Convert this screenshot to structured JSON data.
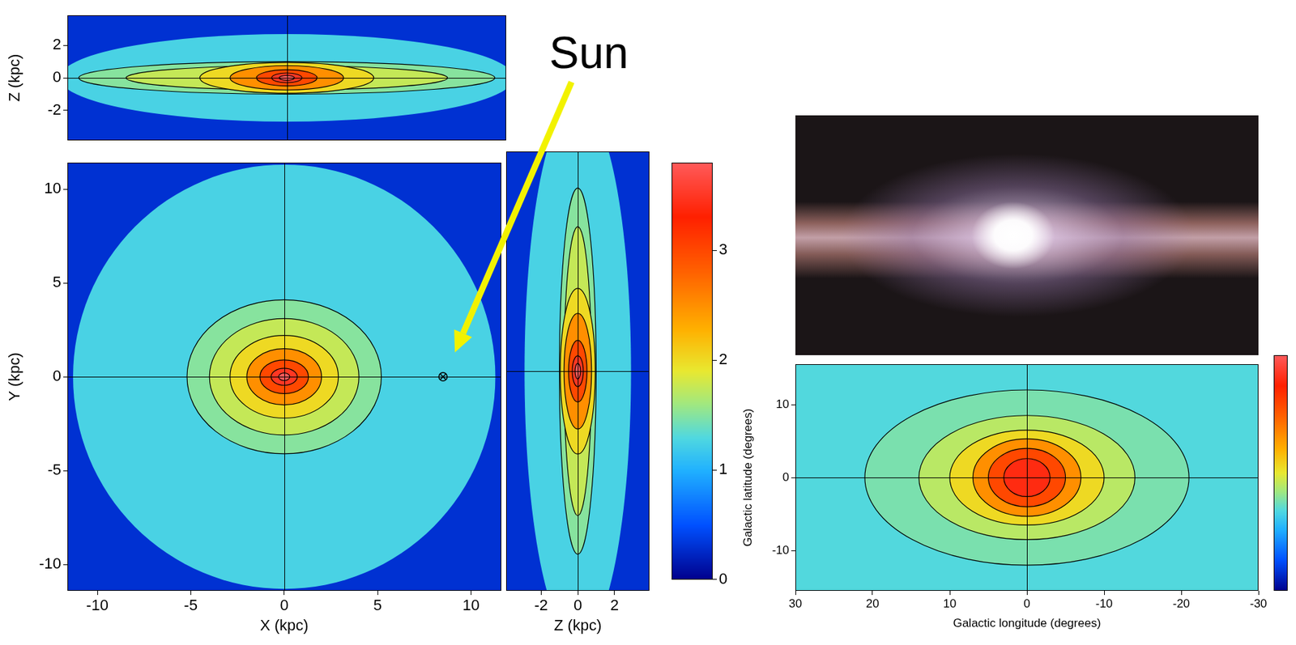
{
  "chart_data": [
    {
      "type": "density_map",
      "x_label": "X (kpc)",
      "y_label": "Y (kpc)",
      "xlim": [
        -11.6,
        11.6
      ],
      "ylim": [
        -11.4,
        11.4
      ],
      "xticks": [
        -10,
        -5,
        0,
        5,
        10
      ],
      "yticks": [
        -10,
        -5,
        0,
        5,
        10
      ],
      "center": [
        0,
        0
      ],
      "background_level": 0.3,
      "regions": [
        {
          "level": 1.25,
          "a": 11.3,
          "b": 11.3
        }
      ],
      "contours": [
        {
          "level": 1.5,
          "a": 5.2,
          "b": 4.1
        },
        {
          "level": 1.75,
          "a": 4.0,
          "b": 3.1
        },
        {
          "level": 2.0,
          "a": 2.9,
          "b": 2.2
        },
        {
          "level": 2.5,
          "a": 2.0,
          "b": 1.5
        },
        {
          "level": 3.0,
          "a": 1.3,
          "b": 0.9
        },
        {
          "level": 3.5,
          "a": 0.7,
          "b": 0.45
        },
        {
          "level": 3.8,
          "a": 0.3,
          "b": 0.2
        }
      ],
      "reference_lines": {
        "x": [
          0
        ],
        "y": [
          0
        ]
      },
      "points": [
        {
          "x": 8.5,
          "y": 0,
          "marker": "circled_cross",
          "label": "Sun"
        }
      ]
    },
    {
      "type": "density_map",
      "y_label": "Z (kpc)",
      "tick_labels": "y",
      "xlim": [
        -11.6,
        11.6
      ],
      "ylim": [
        -3.85,
        3.85
      ],
      "yticks": [
        -2,
        0,
        2
      ],
      "center": [
        0,
        0
      ],
      "background_level": 0.3,
      "regions": [
        {
          "level": 1.25,
          "a": 12,
          "b": 2.7
        }
      ],
      "contours": [
        {
          "level": 1.5,
          "a": 11,
          "b": 1.0
        },
        {
          "level": 1.75,
          "a": 8.5,
          "b": 0.75
        },
        {
          "level": 2.0,
          "a": 4.6,
          "b": 0.95
        },
        {
          "level": 2.5,
          "a": 3.0,
          "b": 0.75
        },
        {
          "level": 3.0,
          "a": 1.6,
          "b": 0.5
        },
        {
          "level": 3.5,
          "a": 0.8,
          "b": 0.3
        },
        {
          "level": 3.8,
          "a": 0.4,
          "b": 0.15
        }
      ],
      "reference_lines": {
        "x": [
          0
        ],
        "y": [
          0
        ]
      }
    },
    {
      "type": "density_map",
      "x_label": "Z (kpc)",
      "tick_labels": "x",
      "xlim": [
        -3.9,
        3.9
      ],
      "ylim": [
        -11.4,
        11.4
      ],
      "xticks": [
        -2,
        0,
        2
      ],
      "center": [
        0,
        0
      ],
      "background_level": 0.3,
      "regions": [
        {
          "level": 1.25,
          "a": 2.9,
          "b": 14
        }
      ],
      "contours": [
        {
          "level": 1.5,
          "a": 1.0,
          "b": 9.5
        },
        {
          "level": 1.75,
          "a": 0.75,
          "b": 7.5
        },
        {
          "level": 2.0,
          "a": 0.95,
          "b": 4.3
        },
        {
          "level": 2.5,
          "a": 0.75,
          "b": 3.0
        },
        {
          "level": 3.0,
          "a": 0.5,
          "b": 1.6
        },
        {
          "level": 3.5,
          "a": 0.3,
          "b": 0.8
        },
        {
          "level": 3.8,
          "a": 0.15,
          "b": 0.4
        }
      ],
      "reference_lines": {
        "x": [
          0
        ],
        "y": [
          0
        ]
      }
    },
    {
      "type": "colorbar",
      "ylim": [
        0,
        3.8
      ],
      "yticks": [
        0,
        1,
        2,
        3
      ]
    },
    {
      "type": "density_map",
      "x_label": "Galactic longitude (degrees)",
      "y_label": "Galactic latitude (degrees)",
      "xlim": [
        30,
        -30
      ],
      "ylim": [
        -15.5,
        15.5
      ],
      "xticks": [
        30,
        20,
        10,
        0,
        -10,
        -20,
        -30
      ],
      "yticks": [
        -10,
        0,
        10
      ],
      "center": [
        0,
        0
      ],
      "background_level": 1.3,
      "regions": [],
      "contours": [
        {
          "level": 1.45,
          "a": 21,
          "b": 12
        },
        {
          "level": 1.7,
          "a": 14,
          "b": 8.5
        },
        {
          "level": 2.0,
          "a": 10,
          "b": 6.5
        },
        {
          "level": 2.5,
          "a": 7,
          "b": 5.3
        },
        {
          "level": 3.0,
          "a": 5,
          "b": 4
        },
        {
          "level": 3.4,
          "a": 3,
          "b": 2.6
        }
      ],
      "reference_lines": {
        "x": [
          0
        ],
        "y": [
          0
        ]
      }
    },
    {
      "type": "colorbar",
      "ylim": [
        0,
        3.8
      ],
      "tick_labels": false
    }
  ]
}
